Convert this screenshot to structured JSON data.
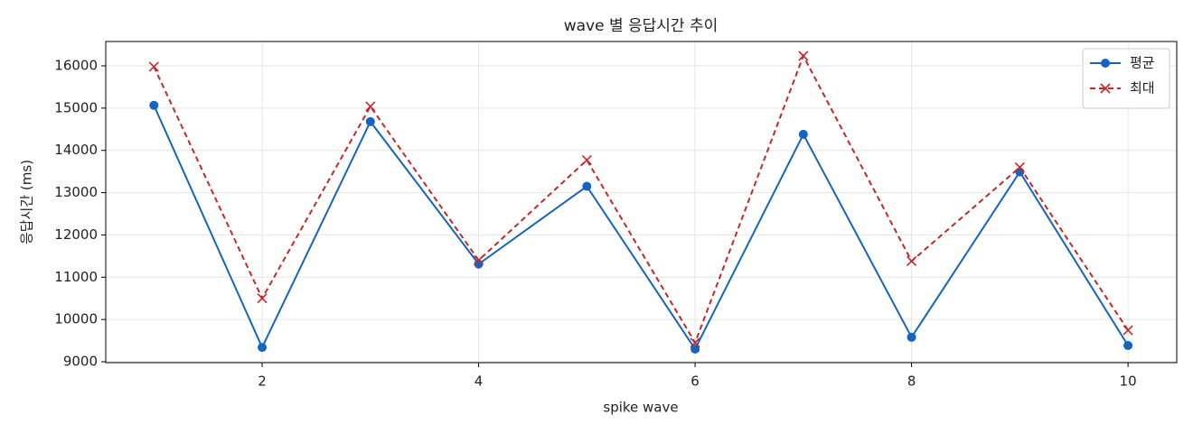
{
  "chart_data": {
    "type": "line",
    "title": "wave 별 응답시간 추이",
    "x_label": "spike wave",
    "y_label": "응답시간 (ms)",
    "x": [
      1,
      2,
      3,
      4,
      5,
      6,
      7,
      8,
      9,
      10
    ],
    "series": [
      {
        "name": "평균",
        "color": "#1565c0",
        "marker": "circle",
        "dash": "solid",
        "values": [
          15065,
          9340,
          14680,
          11310,
          13150,
          9300,
          14380,
          9580,
          13490,
          9385
        ]
      },
      {
        "name": "최대",
        "color": "#c62828",
        "marker": "x",
        "dash": "dashed",
        "values": [
          15980,
          10500,
          15040,
          11400,
          13770,
          9450,
          16235,
          11380,
          13600,
          9745
        ]
      }
    ],
    "xlim": [
      0.555,
      10.45
    ],
    "xticks": [
      2,
      4,
      6,
      8,
      10
    ],
    "ylim": [
      8979,
      16576
    ],
    "yticks": [
      9000,
      10000,
      11000,
      12000,
      13000,
      14000,
      15000,
      16000
    ],
    "grid": true,
    "legend": "upper right"
  }
}
